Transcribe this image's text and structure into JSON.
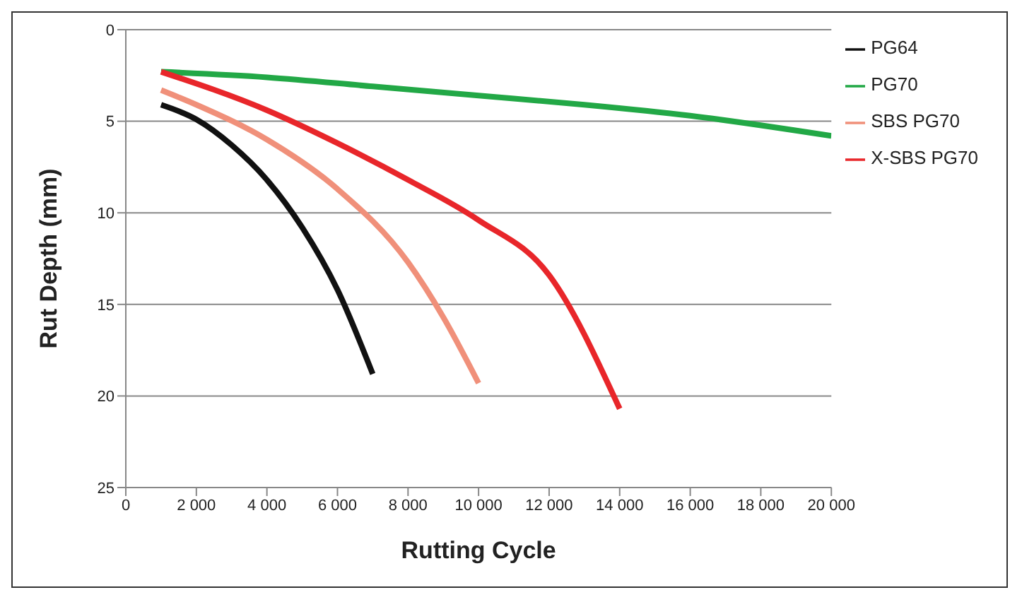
{
  "chart_data": {
    "type": "line",
    "xlabel": "Rutting Cycle",
    "ylabel": "Rut  Depth (mm)",
    "xlim": [
      0,
      20000
    ],
    "xticks": [
      0,
      {
        "value": 2000,
        "label": "2 000"
      },
      {
        "value": 4000,
        "label": "4 000"
      },
      {
        "value": 6000,
        "label": "6 000"
      },
      {
        "value": 8000,
        "label": "8 000"
      },
      {
        "value": 10000,
        "label": "10 000"
      },
      {
        "value": 12000,
        "label": "12 000"
      },
      {
        "value": 14000,
        "label": "14 000"
      },
      {
        "value": 16000,
        "label": "16 000"
      },
      {
        "value": 18000,
        "label": "18 000"
      },
      {
        "value": 20000,
        "label": "20 000"
      }
    ],
    "ylim": [
      25,
      0
    ],
    "yticks": [
      0,
      5,
      10,
      15,
      20,
      25
    ],
    "grid": "y",
    "legend": "right",
    "marker": "none",
    "line_style": "solid",
    "series": [
      {
        "name": "PG70",
        "color": "#22a846",
        "x": [
          1000,
          4000,
          7000,
          10000,
          13000,
          16000,
          20000
        ],
        "values": [
          2.3,
          2.6,
          3.1,
          3.6,
          4.1,
          4.7,
          5.8
        ]
      },
      {
        "name": "X-SBS PG70",
        "color": "#e8262a",
        "x": [
          1000,
          4000,
          6000,
          8000,
          10000,
          12000,
          14000
        ],
        "values": [
          2.3,
          4.4,
          6.2,
          8.2,
          10.4,
          13.4,
          20.7
        ]
      },
      {
        "name": "SBS PG70",
        "color": "#f0907a",
        "x": [
          1000,
          2000,
          4000,
          6000,
          8000,
          9000,
          10000
        ],
        "values": [
          3.3,
          4.1,
          6.0,
          8.7,
          12.7,
          15.7,
          19.3
        ]
      },
      {
        "name": "PG64",
        "color": "#111111",
        "x": [
          1000,
          2000,
          3000,
          4000,
          5000,
          6000,
          7000
        ],
        "values": [
          4.1,
          4.9,
          6.3,
          8.2,
          10.8,
          14.2,
          18.8
        ]
      }
    ]
  }
}
